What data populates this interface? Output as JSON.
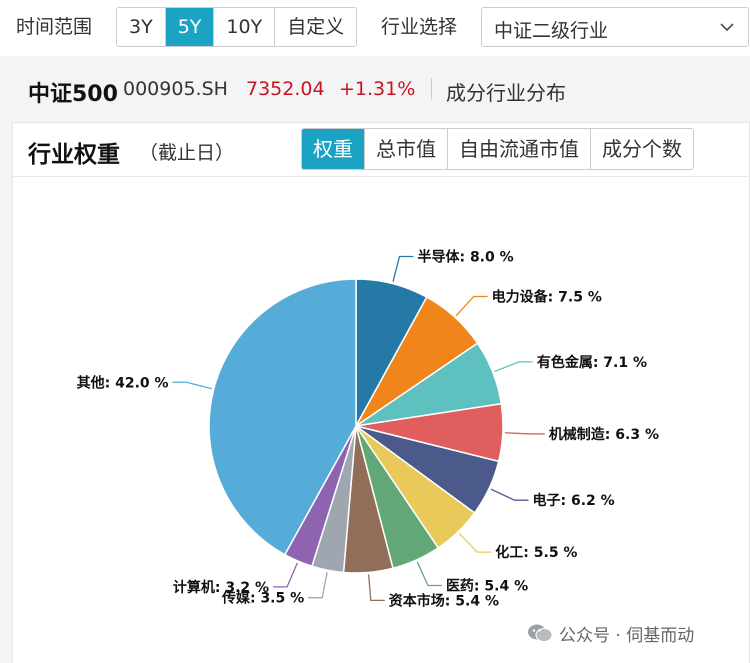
{
  "filter": {
    "time_label": "时间范围",
    "time_options": [
      "3Y",
      "5Y",
      "10Y",
      "自定义"
    ],
    "time_selected": "5Y",
    "industry_label": "行业选择",
    "industry_value": "中证二级行业"
  },
  "index": {
    "name": "中证500",
    "code": "000905.SH",
    "price": "7352.04",
    "change": "+1.31%",
    "subtitle": "成分行业分布"
  },
  "card": {
    "title": "行业权重",
    "note": "（截止日）",
    "tabs": [
      "权重",
      "总市值",
      "自由流通市值",
      "成分个数"
    ],
    "active_tab": "权重"
  },
  "watermark": "公众号 · 伺基而动",
  "chart_data": {
    "type": "pie",
    "title": "",
    "start_angle_deg": 0,
    "direction": "clockwise",
    "slices": [
      {
        "name": "半导体",
        "value": 8.0,
        "label": "半导体: 8.0 %",
        "color": "#2479a6"
      },
      {
        "name": "电力设备",
        "value": 7.5,
        "label": "电力设备: 7.5 %",
        "color": "#f0861b"
      },
      {
        "name": "有色金属",
        "value": 7.1,
        "label": "有色金属: 7.1 %",
        "color": "#5ec0bf"
      },
      {
        "name": "机械制造",
        "value": 6.3,
        "label": "机械制造: 6.3 %",
        "color": "#e05e5d"
      },
      {
        "name": "电子",
        "value": 6.2,
        "label": "电子: 6.2 %",
        "color": "#4b5a8b"
      },
      {
        "name": "化工",
        "value": 5.5,
        "label": "化工: 5.5 %",
        "color": "#e8c95a"
      },
      {
        "name": "医药",
        "value": 5.4,
        "label": "医药: 5.4 %",
        "color": "#62a877"
      },
      {
        "name": "资本市场",
        "value": 5.4,
        "label": "资本市场: 5.4 %",
        "color": "#916e57"
      },
      {
        "name": "传媒",
        "value": 3.5,
        "label": "传媒: 3.5 %",
        "color": "#9ea7b0"
      },
      {
        "name": "计算机",
        "value": 3.2,
        "label": "计算机: 3.2 %",
        "color": "#8e64b0"
      },
      {
        "name": "其他",
        "value": 42.0,
        "label": "其他: 42.0 %",
        "color": "#55acd9"
      }
    ]
  }
}
